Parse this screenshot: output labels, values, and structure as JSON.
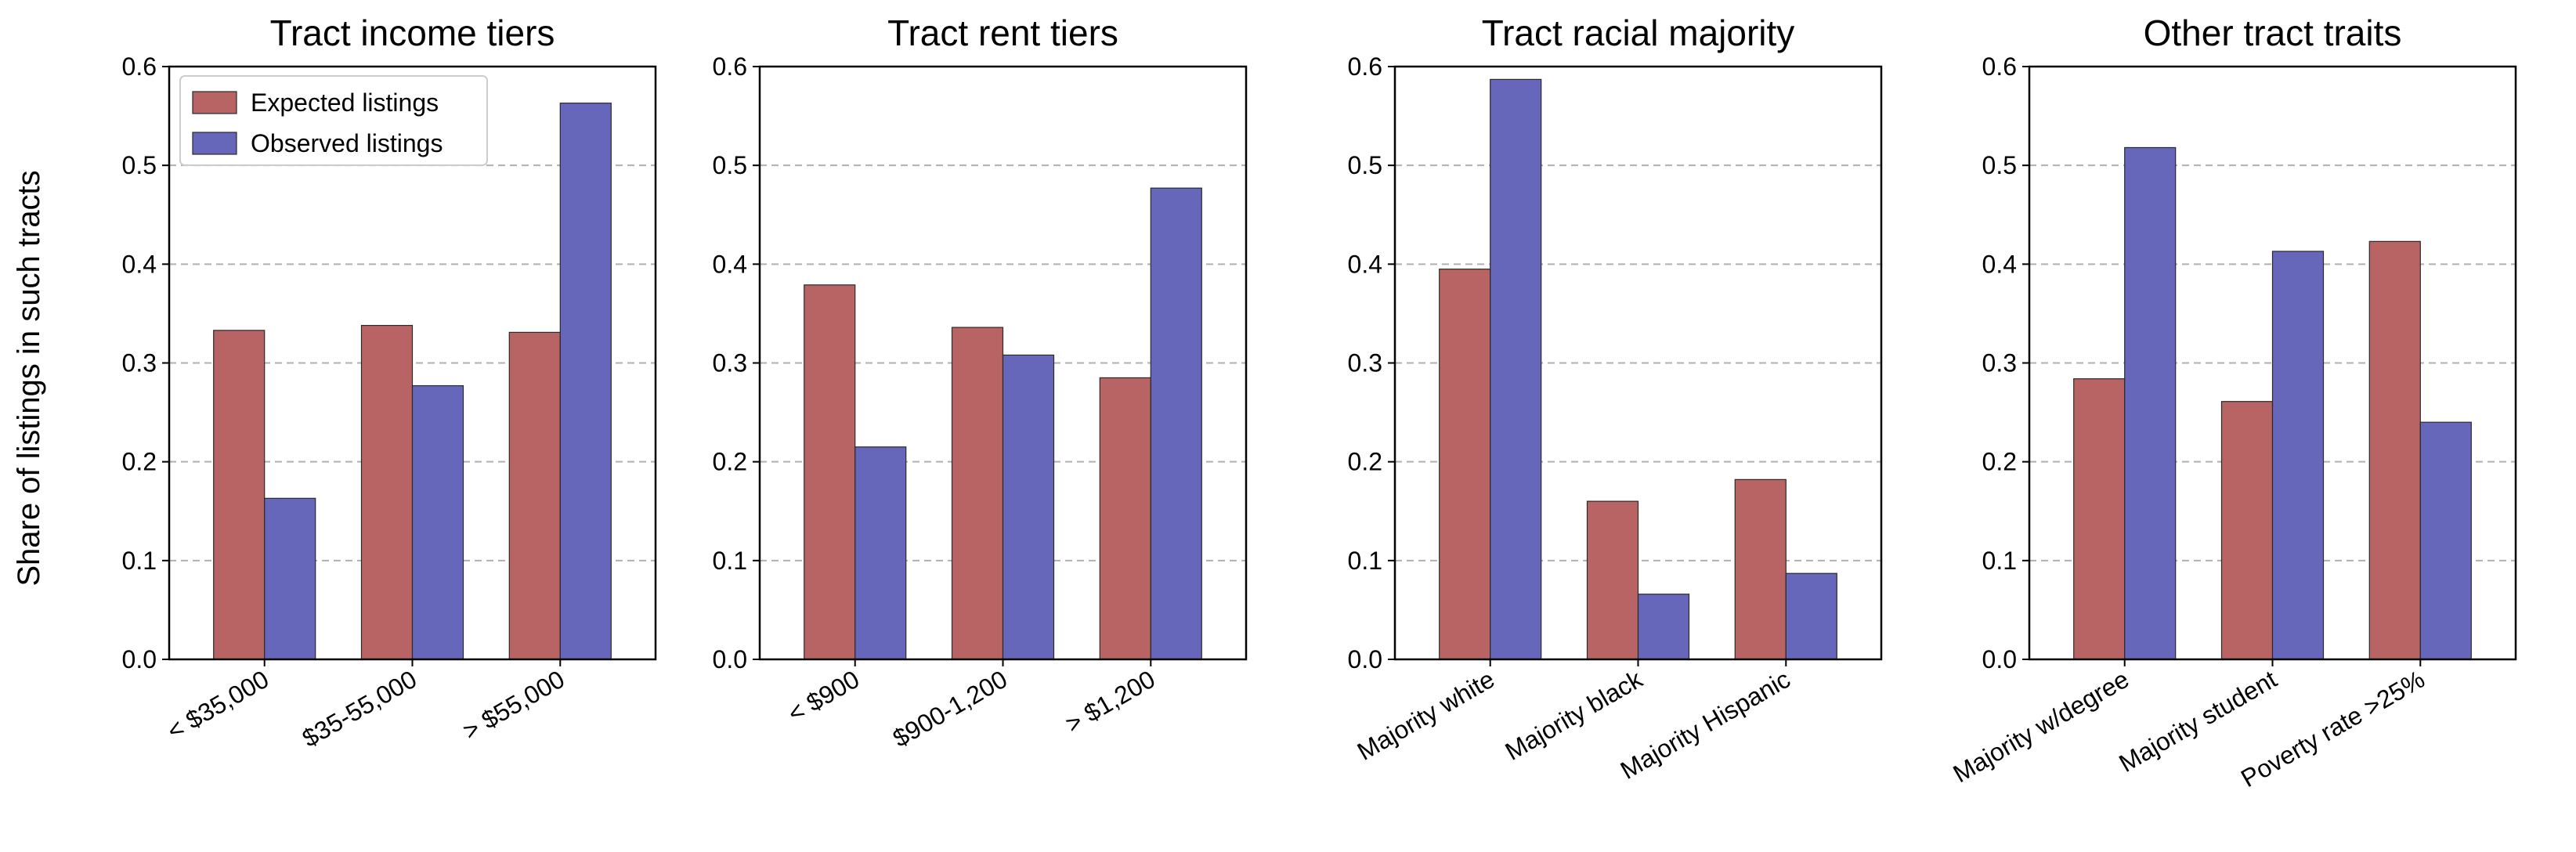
{
  "figure": {
    "ylabel": "Share of listings in such tracts",
    "legend": [
      {
        "label": "Expected listings",
        "color": "#b96464"
      },
      {
        "label": "Observed listings",
        "color": "#6666bb"
      }
    ]
  },
  "chart_data": [
    {
      "type": "bar",
      "title": "Tract income tiers",
      "xlabel": "",
      "ylabel": "Share of listings in such tracts",
      "ylim": [
        0,
        0.6
      ],
      "yticks": [
        "0.0",
        "0.1",
        "0.2",
        "0.3",
        "0.4",
        "0.5",
        "0.6"
      ],
      "grid": "horizontal dashed",
      "legend_position": "upper-left",
      "categories": [
        "< $35,000",
        "$35-55,000",
        "> $55,000"
      ],
      "series": [
        {
          "name": "Expected listings",
          "color": "#b96464",
          "values": [
            0.333,
            0.338,
            0.331
          ]
        },
        {
          "name": "Observed listings",
          "color": "#6666bb",
          "values": [
            0.163,
            0.277,
            0.563
          ]
        }
      ]
    },
    {
      "type": "bar",
      "title": "Tract rent tiers",
      "xlabel": "",
      "ylim": [
        0,
        0.6
      ],
      "yticks": [
        "0.0",
        "0.1",
        "0.2",
        "0.3",
        "0.4",
        "0.5",
        "0.6"
      ],
      "grid": "horizontal dashed",
      "categories": [
        "< $900",
        "$900-1,200",
        "> $1,200"
      ],
      "series": [
        {
          "name": "Expected listings",
          "color": "#b96464",
          "values": [
            0.379,
            0.336,
            0.285
          ]
        },
        {
          "name": "Observed listings",
          "color": "#6666bb",
          "values": [
            0.215,
            0.308,
            0.477
          ]
        }
      ]
    },
    {
      "type": "bar",
      "title": "Tract racial majority",
      "xlabel": "",
      "ylim": [
        0,
        0.6
      ],
      "yticks": [
        "0.0",
        "0.1",
        "0.2",
        "0.3",
        "0.4",
        "0.5",
        "0.6"
      ],
      "grid": "horizontal dashed",
      "categories": [
        "Majority white",
        "Majority black",
        "Majority Hispanic"
      ],
      "series": [
        {
          "name": "Expected listings",
          "color": "#b96464",
          "values": [
            0.395,
            0.16,
            0.182
          ]
        },
        {
          "name": "Observed listings",
          "color": "#6666bb",
          "values": [
            0.587,
            0.066,
            0.087
          ]
        }
      ]
    },
    {
      "type": "bar",
      "title": "Other tract traits",
      "xlabel": "",
      "ylim": [
        0,
        0.6
      ],
      "yticks": [
        "0.0",
        "0.1",
        "0.2",
        "0.3",
        "0.4",
        "0.5",
        "0.6"
      ],
      "grid": "horizontal dashed",
      "categories": [
        "Majority w/degree",
        "Majority student",
        "Poverty rate >25%"
      ],
      "series": [
        {
          "name": "Expected listings",
          "color": "#b96464",
          "values": [
            0.284,
            0.261,
            0.423
          ]
        },
        {
          "name": "Observed listings",
          "color": "#6666bb",
          "values": [
            0.518,
            0.413,
            0.24
          ]
        }
      ]
    }
  ]
}
